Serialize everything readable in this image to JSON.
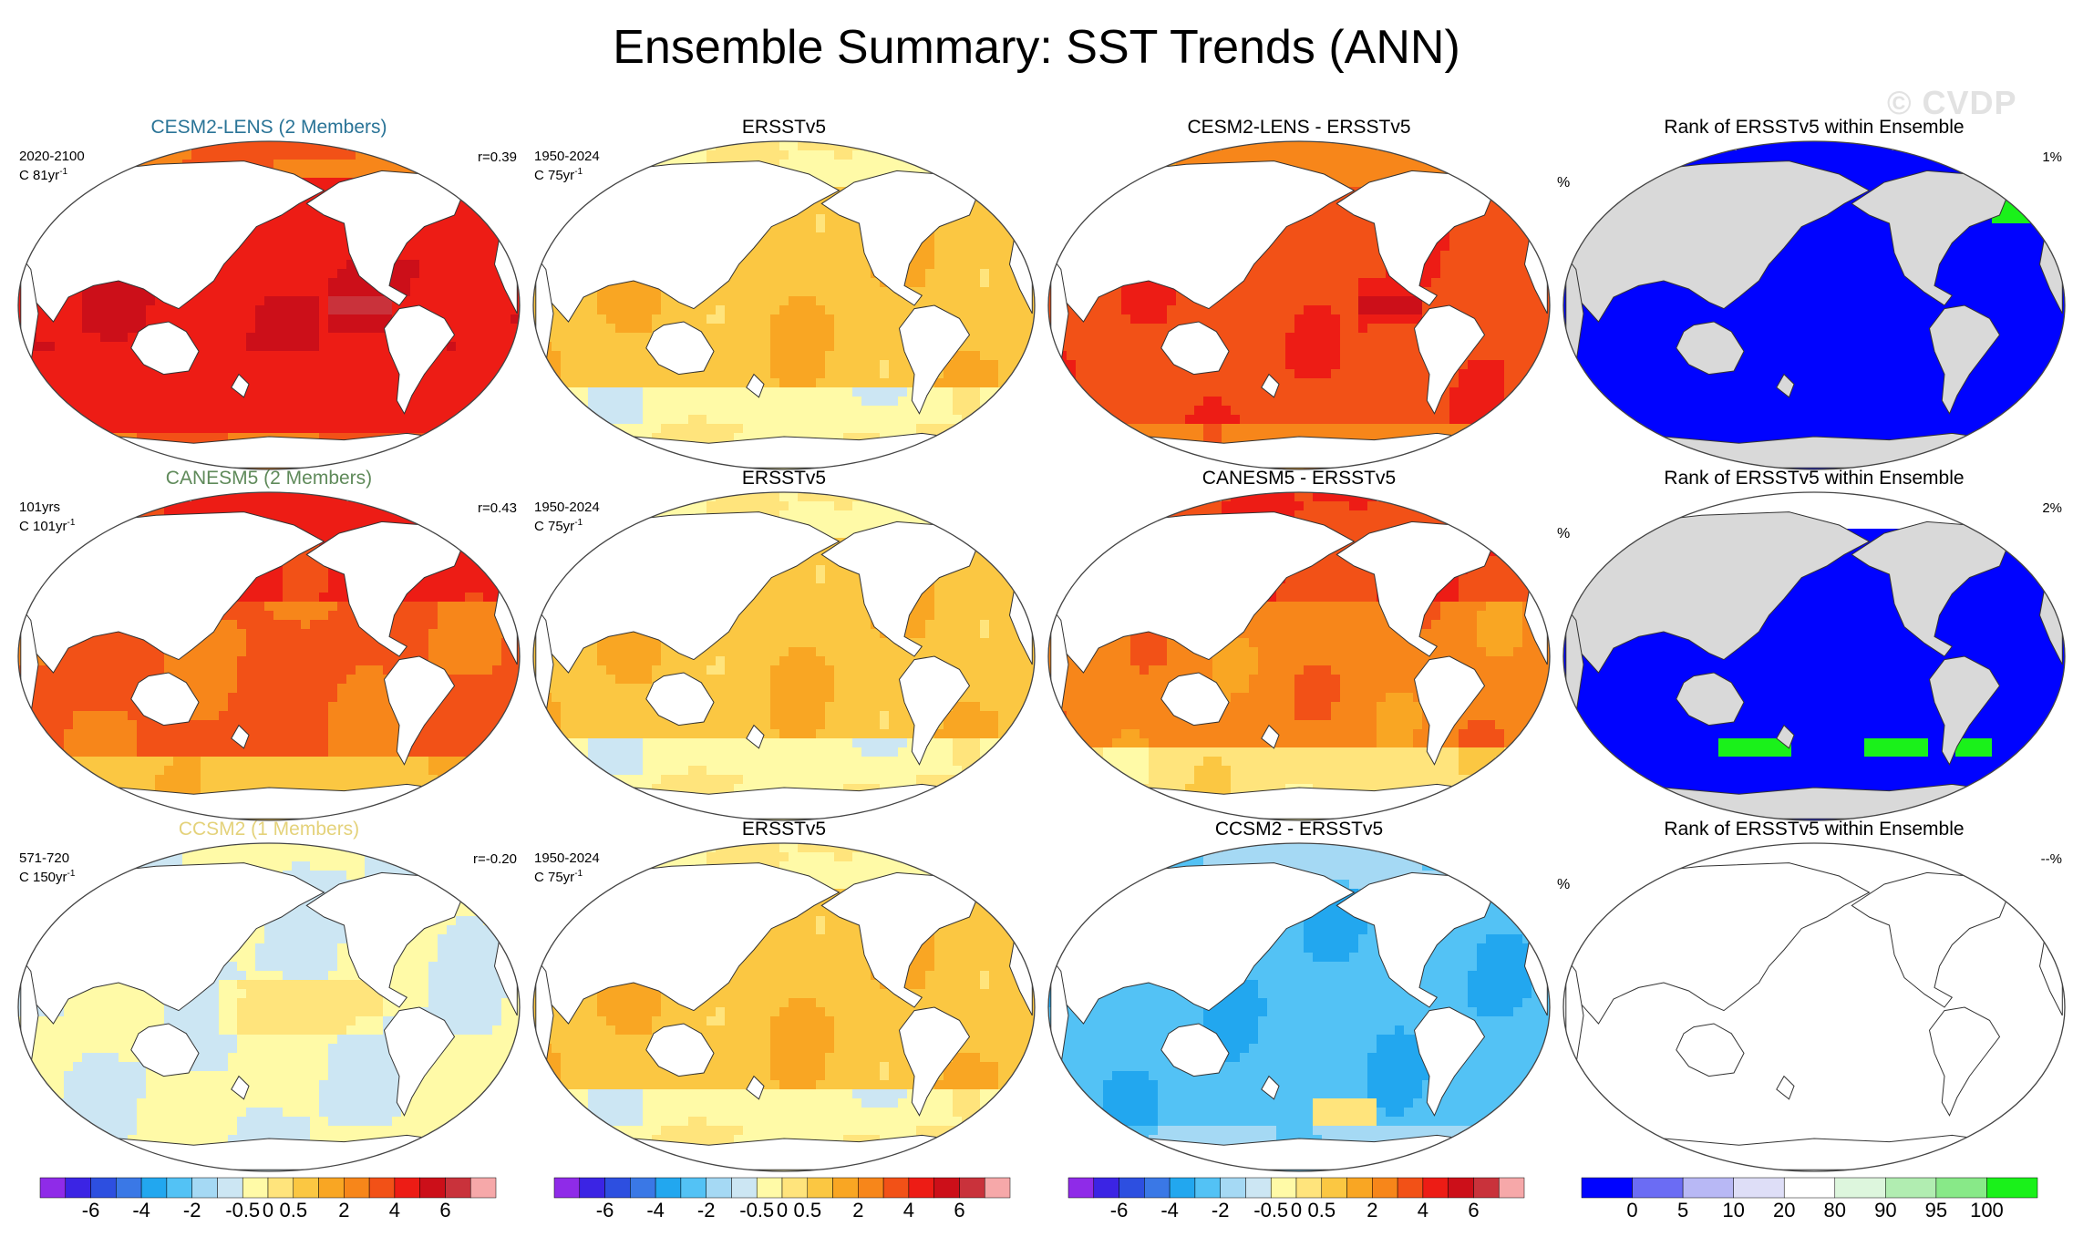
{
  "title": "Ensemble Summary: SST Trends (ANN)",
  "watermark": "© CVDP",
  "colors": {
    "model_title_1": "#2a7497",
    "model_title_2": "#5f8a5a",
    "model_title_3": "#e4d27a",
    "land_white": "#ffffff",
    "land_gray": "#d9d9d9"
  },
  "rows": [
    {
      "model": {
        "title": "CESM2-LENS (2 Members)",
        "period": "2020-2100",
        "units": "C 81yr",
        "units_exp": "-1",
        "r": "r=0.39",
        "pattern": "warm_strong"
      },
      "obs": {
        "title": "ERSSTv5",
        "period": "1950-2024",
        "units": "C 75yr",
        "units_exp": "-1",
        "pattern": "obs"
      },
      "diff": {
        "title": "CESM2-LENS - ERSSTv5",
        "pattern": "diff_warm"
      },
      "rank": {
        "title": "Rank of ERSSTv5 within Ensemble",
        "unit": "%",
        "value": "1%",
        "pattern": "rank_a"
      }
    },
    {
      "model": {
        "title": "CANESM5 (2 Members)",
        "period": "101yrs",
        "units": "C 101yr",
        "units_exp": "-1",
        "r": "r=0.43",
        "pattern": "warm_mid"
      },
      "obs": {
        "title": "ERSSTv5",
        "period": "1950-2024",
        "units": "C 75yr",
        "units_exp": "-1",
        "pattern": "obs"
      },
      "diff": {
        "title": "CANESM5 - ERSSTv5",
        "pattern": "diff_mid"
      },
      "rank": {
        "title": "Rank of ERSSTv5 within Ensemble",
        "unit": "%",
        "value": "2%",
        "pattern": "rank_b"
      }
    },
    {
      "model": {
        "title": "CCSM2 (1 Members)",
        "period": "571-720",
        "units": "C 150yr",
        "units_exp": "-1",
        "r": "r=-0.20",
        "pattern": "neutral"
      },
      "obs": {
        "title": "ERSSTv5",
        "period": "1950-2024",
        "units": "C 75yr",
        "units_exp": "-1",
        "pattern": "obs"
      },
      "diff": {
        "title": "CCSM2 - ERSSTv5",
        "pattern": "diff_cold"
      },
      "rank": {
        "title": "Rank of ERSSTv5 within Ensemble",
        "unit": "%",
        "value": "--%",
        "pattern": "rank_empty"
      }
    }
  ],
  "chart_data": {
    "type": "heatmap",
    "title": "Ensemble Summary: SST Trends (ANN)",
    "description_variable": "SST trend maps on a Robinson-style global projection",
    "trend_colorbar": {
      "ticks": [
        "-6",
        "-4",
        "-2",
        "-0.5",
        "0",
        "0.5",
        "2",
        "4",
        "6"
      ],
      "colors": [
        "#8f2be8",
        "#3b24e4",
        "#2d4fe0",
        "#3a78e6",
        "#22a7ef",
        "#53c2f5",
        "#a5d9f4",
        "#cce6f3",
        "#fffaa7",
        "#ffe47c",
        "#fbc742",
        "#f9a623",
        "#f7861a",
        "#f25117",
        "#ed1c15",
        "#cc0f19",
        "#c9323b",
        "#f6a8a9"
      ]
    },
    "rank_colorbar": {
      "ticks": [
        "0",
        "5",
        "10",
        "20",
        "80",
        "90",
        "95",
        "100"
      ],
      "colors": [
        "#0003ff",
        "#6b6cf4",
        "#b8b8f5",
        "#dedef7",
        "#ffffff",
        "#ddf6dd",
        "#b1edb1",
        "#88e988",
        "#1af11a"
      ]
    },
    "panels": [
      {
        "row": 1,
        "col": 1,
        "name": "CESM2-LENS (2 Members)",
        "period": "2020-2100",
        "pattern_correlation": 0.39,
        "dominant_range": "2 to 6"
      },
      {
        "row": 1,
        "col": 2,
        "name": "ERSSTv5",
        "period": "1950-2024",
        "dominant_range": "0.5 to 2"
      },
      {
        "row": 1,
        "col": 3,
        "name": "CESM2-LENS - ERSSTv5",
        "dominant_range": "2 to 4"
      },
      {
        "row": 1,
        "col": 4,
        "name": "Rank of ERSSTv5 within Ensemble",
        "value_percent": 1,
        "dominant_range": "0 to 5"
      },
      {
        "row": 2,
        "col": 1,
        "name": "CANESM5 (2 Members)",
        "period": "101yrs",
        "pattern_correlation": 0.43,
        "dominant_range": "2 to 4"
      },
      {
        "row": 2,
        "col": 2,
        "name": "ERSSTv5",
        "period": "1950-2024",
        "dominant_range": "0.5 to 2"
      },
      {
        "row": 2,
        "col": 3,
        "name": "CANESM5 - ERSSTv5",
        "dominant_range": "0.5 to 4"
      },
      {
        "row": 2,
        "col": 4,
        "name": "Rank of ERSSTv5 within Ensemble",
        "value_percent": 2,
        "dominant_range": "0 to 5"
      },
      {
        "row": 3,
        "col": 1,
        "name": "CCSM2 (1 Members)",
        "period": "571-720",
        "pattern_correlation": -0.2,
        "dominant_range": "-0.5 to 0.5"
      },
      {
        "row": 3,
        "col": 2,
        "name": "ERSSTv5",
        "period": "1950-2024",
        "dominant_range": "0.5 to 2"
      },
      {
        "row": 3,
        "col": 3,
        "name": "CCSM2 - ERSSTv5",
        "dominant_range": "-2 to -0.5"
      },
      {
        "row": 3,
        "col": 4,
        "name": "Rank of ERSSTv5 within Ensemble",
        "value_percent": null,
        "dominant_range": "none"
      }
    ]
  }
}
